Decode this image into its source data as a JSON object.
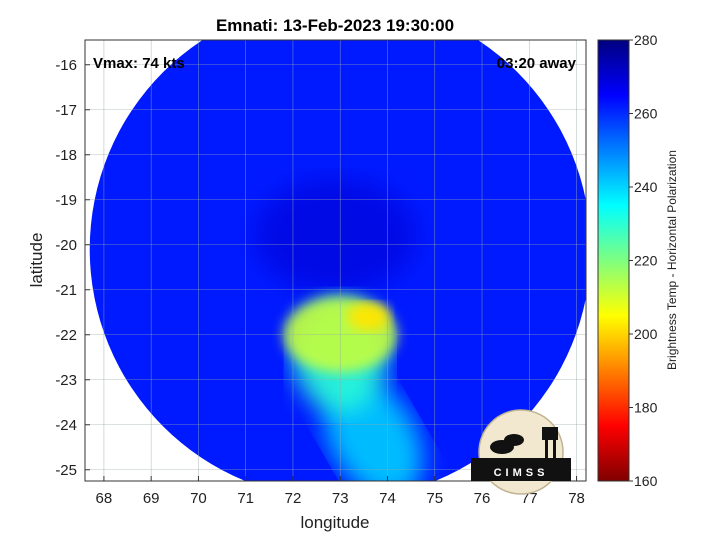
{
  "chart_data": {
    "type": "heatmap",
    "title": "Emnati: 13-Feb-2023 19:30:00",
    "xlabel": "longitude",
    "ylabel": "latitude",
    "xlim": [
      67.6,
      78.2
    ],
    "ylim": [
      -25.25,
      -15.45
    ],
    "xticks": [
      68,
      69,
      70,
      71,
      72,
      73,
      74,
      75,
      76,
      77,
      78
    ],
    "yticks": [
      -16,
      -17,
      -18,
      -19,
      -20,
      -21,
      -22,
      -23,
      -24,
      -25
    ],
    "grid": true,
    "colorbar": {
      "label": "Brightness Temp - Horizontal Polarization",
      "range": [
        160,
        280
      ],
      "ticks": [
        160,
        180,
        200,
        220,
        240,
        260,
        280
      ],
      "colormap": "jet"
    },
    "swath": {
      "center": [
        73.0,
        -20.1
      ],
      "radius_deg": 5.3
    },
    "background_value": 262,
    "features": [
      {
        "name": "eye",
        "center": [
          72.9,
          -19.8
        ],
        "value": 270
      },
      {
        "name": "warm-core-band",
        "center": [
          73.0,
          -22.0
        ],
        "value": 212
      },
      {
        "name": "warmest-spot",
        "center": [
          73.6,
          -21.6
        ],
        "value": 202
      },
      {
        "name": "spiral-tail",
        "center": [
          73.7,
          -24.3
        ],
        "value": 238
      }
    ],
    "annotations": {
      "vmax": "Vmax: 74 kts",
      "away": "03:20 away"
    },
    "logo_text": "CIMSS"
  }
}
